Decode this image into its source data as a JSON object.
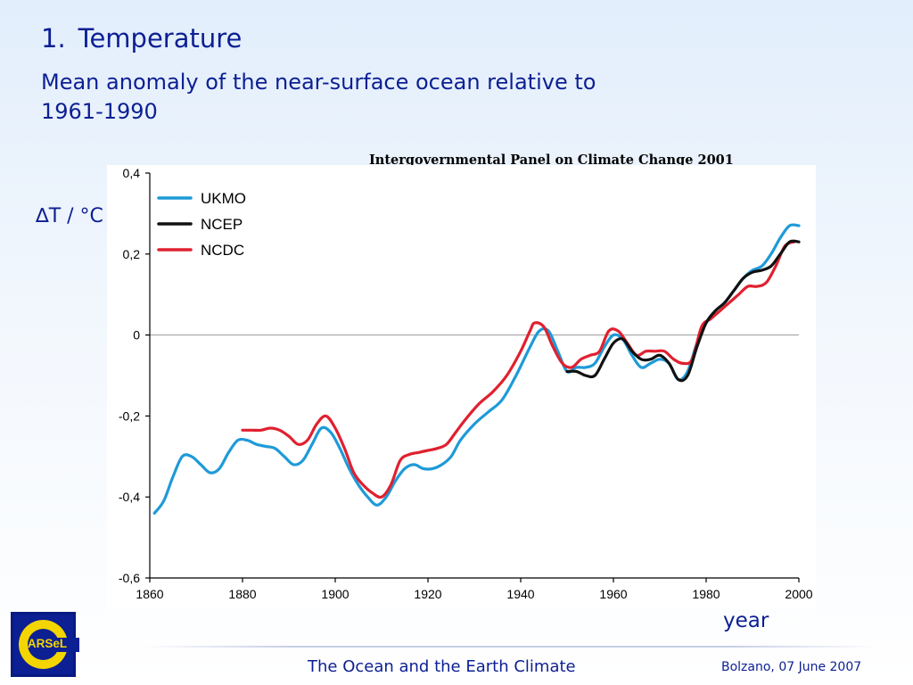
{
  "slide": {
    "number": "1.",
    "title": "Temperature",
    "subtitle": "Mean anomaly of the near-surface ocean relative to 1961-1990",
    "credit": "Intergovernmental Panel on Climate Change 2001",
    "y_axis_label": "∆T / °C",
    "x_axis_label": "year"
  },
  "footer": {
    "logo_text": "EARSeL",
    "center": "The Ocean and the Earth Climate",
    "right": "Bolzano, 07 June 2007"
  },
  "chart_data": {
    "type": "line",
    "title": "",
    "xlabel": "year",
    "ylabel": "∆T / °C",
    "xlim": [
      1860,
      2000
    ],
    "ylim": [
      -0.6,
      0.4
    ],
    "x_ticks": [
      1860,
      1880,
      1900,
      1920,
      1940,
      1960,
      1980,
      2000
    ],
    "y_ticks": [
      -0.6,
      -0.4,
      -0.2,
      0,
      0.2,
      0.4
    ],
    "y_tick_labels": [
      "-0,6",
      "-0,4",
      "-0,2",
      "0",
      "0,2",
      "0,4"
    ],
    "zero_line": true,
    "grid": false,
    "legend_position": "top-left",
    "series": [
      {
        "name": "UKMO",
        "color": "#1e9ad8",
        "x": [
          1861,
          1863,
          1865,
          1867,
          1869,
          1871,
          1873,
          1875,
          1877,
          1879,
          1881,
          1883,
          1885,
          1887,
          1889,
          1891,
          1893,
          1895,
          1897,
          1899,
          1901,
          1903,
          1905,
          1907,
          1909,
          1911,
          1913,
          1915,
          1917,
          1919,
          1921,
          1923,
          1925,
          1927,
          1930,
          1933,
          1936,
          1939,
          1942,
          1944,
          1946,
          1948,
          1950,
          1952,
          1954,
          1956,
          1958,
          1960,
          1962,
          1964,
          1966,
          1968,
          1970,
          1972,
          1974,
          1976,
          1978,
          1980,
          1982,
          1984,
          1986,
          1988,
          1990,
          1992,
          1994,
          1996,
          1998,
          2000
        ],
        "y": [
          -0.44,
          -0.41,
          -0.35,
          -0.3,
          -0.3,
          -0.32,
          -0.34,
          -0.33,
          -0.29,
          -0.26,
          -0.26,
          -0.27,
          -0.275,
          -0.28,
          -0.3,
          -0.32,
          -0.31,
          -0.27,
          -0.23,
          -0.24,
          -0.28,
          -0.33,
          -0.37,
          -0.4,
          -0.42,
          -0.4,
          -0.36,
          -0.33,
          -0.32,
          -0.33,
          -0.33,
          -0.32,
          -0.3,
          -0.26,
          -0.22,
          -0.19,
          -0.16,
          -0.1,
          -0.03,
          0.01,
          0.01,
          -0.04,
          -0.09,
          -0.08,
          -0.08,
          -0.07,
          -0.03,
          0.0,
          -0.01,
          -0.05,
          -0.08,
          -0.07,
          -0.06,
          -0.07,
          -0.11,
          -0.09,
          -0.02,
          0.03,
          0.06,
          0.08,
          0.11,
          0.14,
          0.16,
          0.17,
          0.2,
          0.24,
          0.27,
          0.27
        ]
      },
      {
        "name": "NCEP",
        "color": "#111111",
        "x": [
          1950,
          1952,
          1954,
          1956,
          1958,
          1960,
          1962,
          1964,
          1966,
          1968,
          1970,
          1972,
          1974,
          1976,
          1978,
          1980,
          1982,
          1984,
          1986,
          1988,
          1990,
          1992,
          1994,
          1996,
          1998,
          2000
        ],
        "y": [
          -0.09,
          -0.09,
          -0.1,
          -0.1,
          -0.06,
          -0.02,
          -0.01,
          -0.04,
          -0.06,
          -0.06,
          -0.05,
          -0.07,
          -0.11,
          -0.1,
          -0.03,
          0.03,
          0.06,
          0.08,
          0.11,
          0.14,
          0.155,
          0.16,
          0.17,
          0.2,
          0.23,
          0.23
        ]
      },
      {
        "name": "NCDC",
        "color": "#e0202f",
        "x": [
          1880,
          1882,
          1884,
          1886,
          1888,
          1890,
          1892,
          1894,
          1896,
          1898,
          1900,
          1902,
          1904,
          1906,
          1908,
          1910,
          1912,
          1914,
          1916,
          1918,
          1920,
          1922,
          1924,
          1926,
          1928,
          1931,
          1934,
          1937,
          1940,
          1942,
          1943,
          1945,
          1947,
          1949,
          1951,
          1953,
          1955,
          1957,
          1959,
          1961,
          1963,
          1965,
          1967,
          1969,
          1971,
          1973,
          1975,
          1977,
          1979,
          1981,
          1983,
          1985,
          1987,
          1989,
          1991,
          1993,
          1995,
          1997,
          1999
        ],
        "y": [
          -0.235,
          -0.235,
          -0.235,
          -0.23,
          -0.235,
          -0.25,
          -0.27,
          -0.26,
          -0.22,
          -0.2,
          -0.23,
          -0.28,
          -0.34,
          -0.37,
          -0.39,
          -0.4,
          -0.37,
          -0.31,
          -0.295,
          -0.29,
          -0.285,
          -0.28,
          -0.27,
          -0.24,
          -0.21,
          -0.17,
          -0.14,
          -0.1,
          -0.04,
          0.01,
          0.03,
          0.02,
          -0.03,
          -0.07,
          -0.08,
          -0.06,
          -0.05,
          -0.04,
          0.01,
          0.01,
          -0.02,
          -0.05,
          -0.04,
          -0.04,
          -0.04,
          -0.06,
          -0.07,
          -0.06,
          0.02,
          0.04,
          0.06,
          0.08,
          0.1,
          0.12,
          0.12,
          0.13,
          0.17,
          0.22,
          0.23
        ]
      }
    ]
  }
}
